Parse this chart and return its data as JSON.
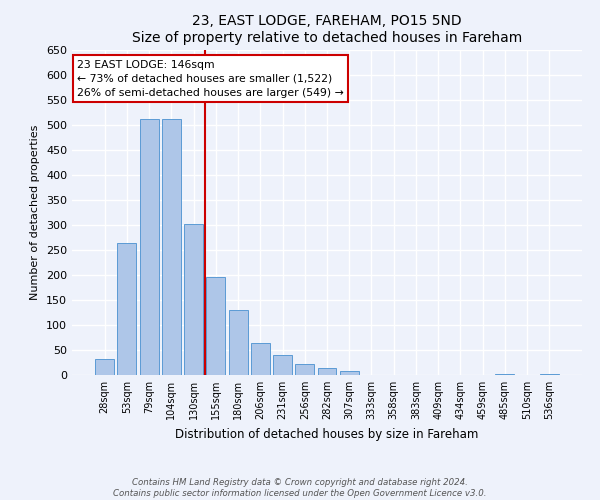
{
  "title": "23, EAST LODGE, FAREHAM, PO15 5ND",
  "subtitle": "Size of property relative to detached houses in Fareham",
  "xlabel": "Distribution of detached houses by size in Fareham",
  "ylabel": "Number of detached properties",
  "categories": [
    "28sqm",
    "53sqm",
    "79sqm",
    "104sqm",
    "130sqm",
    "155sqm",
    "180sqm",
    "206sqm",
    "231sqm",
    "256sqm",
    "282sqm",
    "307sqm",
    "333sqm",
    "358sqm",
    "383sqm",
    "409sqm",
    "434sqm",
    "459sqm",
    "485sqm",
    "510sqm",
    "536sqm"
  ],
  "values": [
    32,
    265,
    512,
    512,
    302,
    196,
    130,
    65,
    40,
    22,
    15,
    8,
    0,
    0,
    0,
    0,
    0,
    0,
    3,
    0,
    3
  ],
  "bar_color": "#aec6e8",
  "bar_edge_color": "#5b9bd5",
  "background_color": "#eef2fb",
  "grid_color": "#ffffff",
  "ylim": [
    0,
    650
  ],
  "yticks": [
    0,
    50,
    100,
    150,
    200,
    250,
    300,
    350,
    400,
    450,
    500,
    550,
    600,
    650
  ],
  "property_line_x": 4.5,
  "property_line_color": "#cc0000",
  "annotation_title": "23 EAST LODGE: 146sqm",
  "annotation_line1": "← 73% of detached houses are smaller (1,522)",
  "annotation_line2": "26% of semi-detached houses are larger (549) →",
  "annotation_box_color": "#ffffff",
  "annotation_box_edge_color": "#cc0000",
  "footnote1": "Contains HM Land Registry data © Crown copyright and database right 2024.",
  "footnote2": "Contains public sector information licensed under the Open Government Licence v3.0."
}
